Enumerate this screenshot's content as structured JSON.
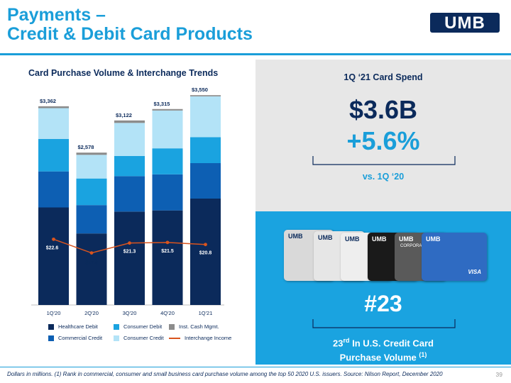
{
  "header": {
    "title_line1": "Payments –",
    "title_line2": "Credit & Debit Card Products",
    "logo_text": "UMB"
  },
  "chart_data": {
    "type": "bar",
    "title": "Card Purchase Volume & Interchange Trends",
    "categories": [
      "1Q'20",
      "2Q'20",
      "3Q'20",
      "4Q'20",
      "1Q'21"
    ],
    "totals": [
      "$3,362",
      "$2,578",
      "$3,122",
      "$3,315",
      "$3,550"
    ],
    "ylim": [
      0,
      3600
    ],
    "series": [
      {
        "name": "Healthcare Debit",
        "color": "#0b2a5b",
        "values": [
          1650,
          1210,
          1580,
          1600,
          1800
        ]
      },
      {
        "name": "Commercial Credit",
        "color": "#0d5fb3",
        "values": [
          610,
          480,
          600,
          610,
          600
        ]
      },
      {
        "name": "Consumer Debit",
        "color": "#1aa3e0",
        "values": [
          550,
          450,
          340,
          440,
          440
        ]
      },
      {
        "name": "Consumer Credit",
        "color": "#b3e3f7",
        "values": [
          520,
          400,
          560,
          640,
          690
        ]
      },
      {
        "name": "Inst. Cash Mgmt.",
        "color": "#8c8c8c",
        "values": [
          32,
          38,
          42,
          25,
          20
        ]
      }
    ],
    "line_series": {
      "name": "Interchange Income",
      "color": "#d9541e",
      "values": [
        22.6,
        17.9,
        21.3,
        21.5,
        20.8
      ],
      "labels": [
        "$22.6",
        "$17.9",
        "$21.3",
        "$21.5",
        "$20.8"
      ],
      "ylim": [
        0,
        60
      ]
    },
    "legend_placement": "bottom"
  },
  "legend": [
    {
      "label": "Healthcare Debit",
      "color": "#0b2a5b",
      "kind": "box"
    },
    {
      "label": "Consumer Debit",
      "color": "#1aa3e0",
      "kind": "box"
    },
    {
      "label": "Inst. Cash Mgmt.",
      "color": "#8c8c8c",
      "kind": "box"
    },
    {
      "label": "Commercial Credit",
      "color": "#0d5fb3",
      "kind": "box"
    },
    {
      "label": "Consumer Credit",
      "color": "#b3e3f7",
      "kind": "box"
    },
    {
      "label": "Interchange Income",
      "color": "#d9541e",
      "kind": "line"
    }
  ],
  "spend": {
    "label": "1Q ‘21 Card Spend",
    "value": "$3.6B",
    "change": "+5.6%",
    "comparison": "vs. 1Q ‘20"
  },
  "ranking": {
    "rank": "#23",
    "rank_ordinal": "23",
    "rank_suffix": "rd",
    "desc_rest": " In U.S. Credit Card",
    "desc_line2": "Purchase Volume ",
    "footnote_ref": "(1)"
  },
  "cards": [
    "UMB",
    "UMB",
    "UMB",
    "UMB",
    "UMB",
    "UMB"
  ],
  "card_text": {
    "corporate": "CORPORA",
    "visa": "VISA"
  },
  "footer": {
    "note": "Dollars in millions. (1) Rank in commercial, consumer and small business card purchase volume among the top 50 2020 U.S. issuers. Source: Nilson Report, December 2020",
    "page": "39"
  },
  "colors": {
    "accent": "#1a9ed9",
    "navy": "#0b2a5b"
  }
}
